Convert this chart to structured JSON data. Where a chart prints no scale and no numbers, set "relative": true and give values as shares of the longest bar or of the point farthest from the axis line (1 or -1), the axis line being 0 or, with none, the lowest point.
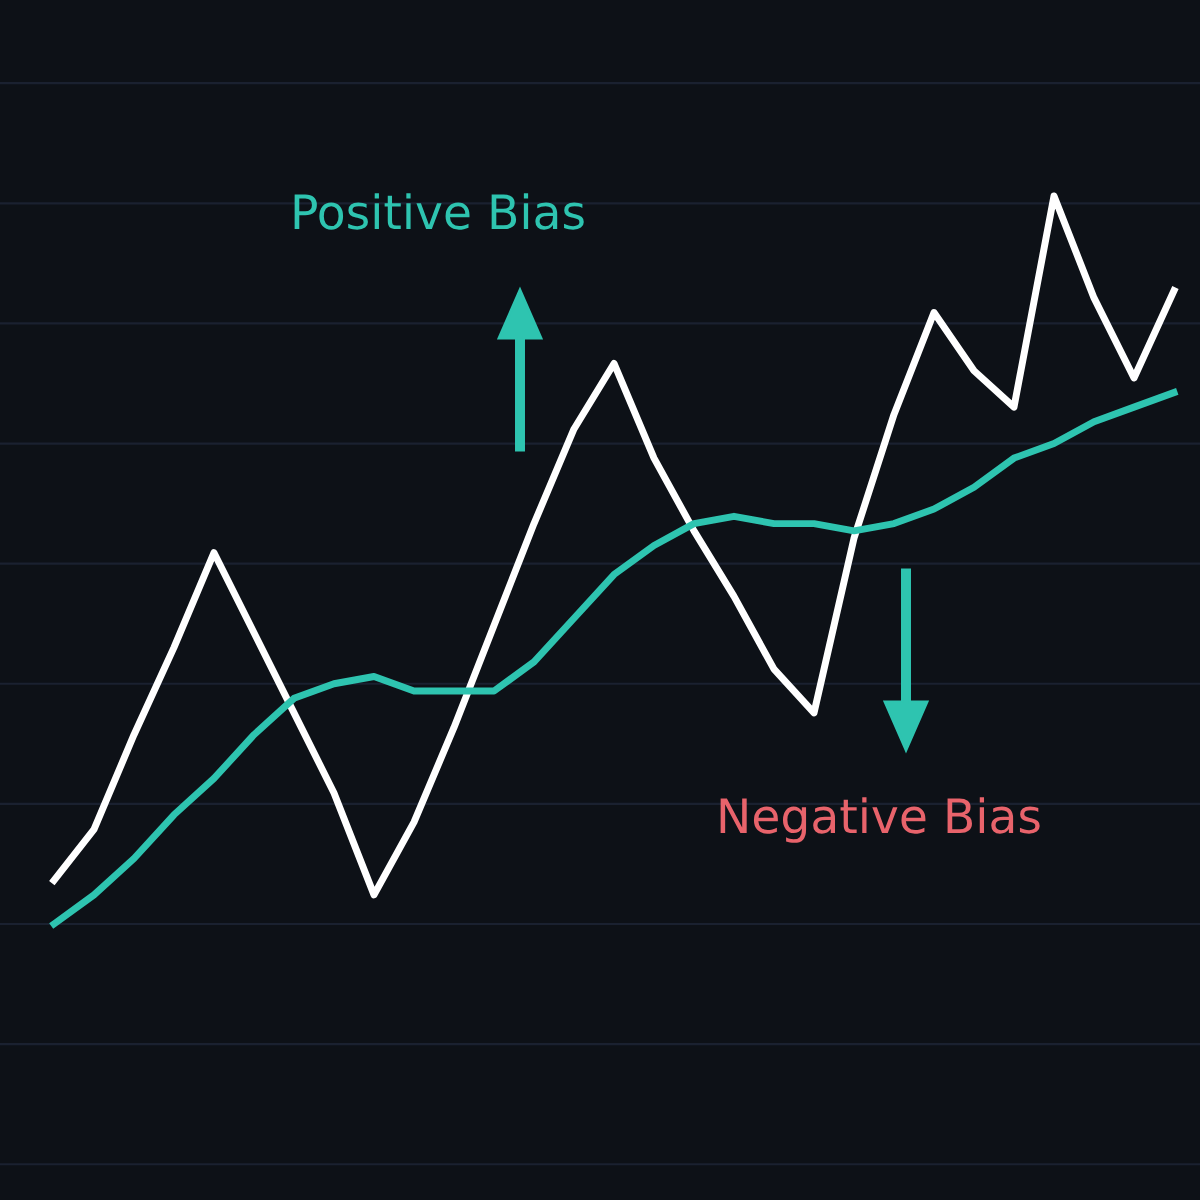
{
  "chart_data": {
    "type": "line",
    "relative": true,
    "grid": true,
    "legend": false,
    "categories": [
      null,
      null,
      null,
      null,
      null,
      null,
      null,
      null,
      null,
      null,
      null,
      null,
      null,
      null,
      null,
      null,
      null,
      null,
      null,
      null,
      null,
      null,
      null,
      null,
      null,
      null,
      null,
      null,
      null
    ],
    "series": [
      {
        "color": "#ffffff",
        "values": [
          0.06,
          0.13,
          0.26,
          0.38,
          0.51,
          0.4,
          0.29,
          0.18,
          0.04,
          0.14,
          0.27,
          0.41,
          0.55,
          0.68,
          0.77,
          0.64,
          0.54,
          0.45,
          0.35,
          0.29,
          0.53,
          0.7,
          0.84,
          0.76,
          0.71,
          1.0,
          0.86,
          0.75,
          0.87
        ]
      },
      {
        "color": "#2ec4b0",
        "values": [
          0,
          0.04,
          0.09,
          0.15,
          0.2,
          0.26,
          0.31,
          0.33,
          0.34,
          0.32,
          0.32,
          0.32,
          0.36,
          0.42,
          0.48,
          0.52,
          0.55,
          0.56,
          0.55,
          0.55,
          0.54,
          0.55,
          0.57,
          0.6,
          0.64,
          0.66,
          0.69,
          0.71,
          0.73
        ]
      }
    ],
    "annotations": [
      "Positive Bias",
      "Negative Bias"
    ]
  }
}
